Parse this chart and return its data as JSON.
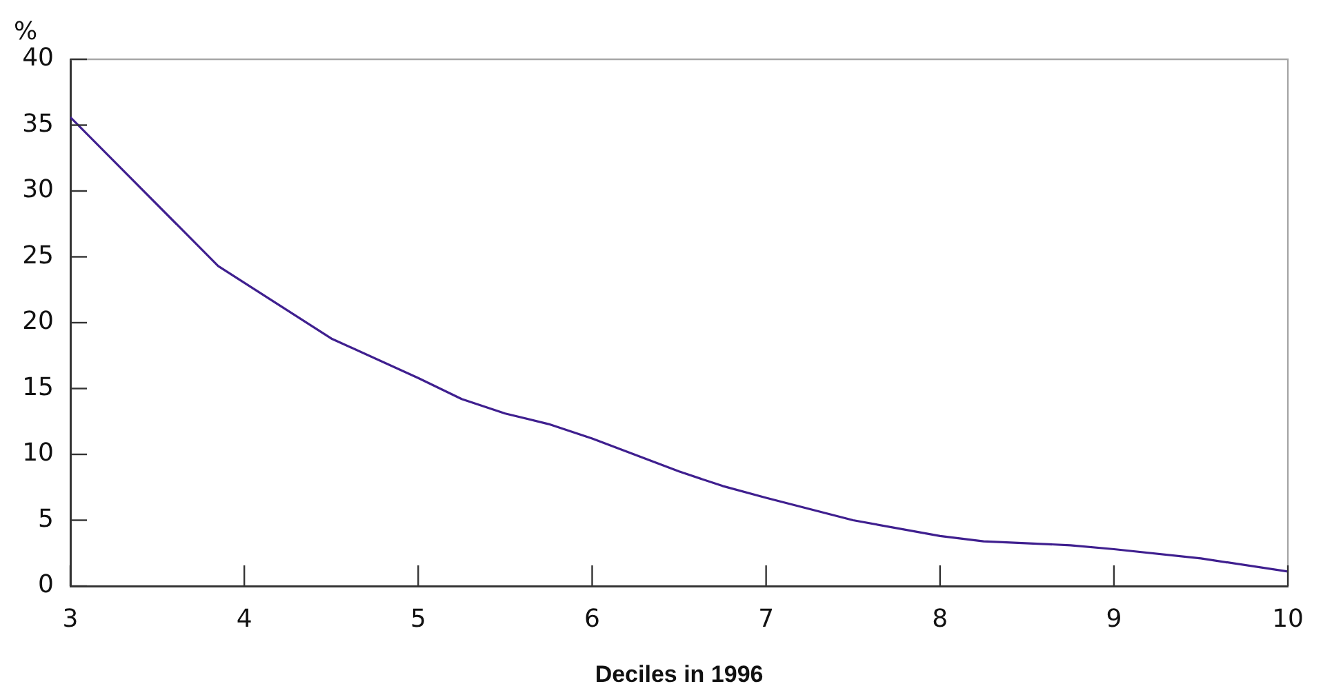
{
  "chart_data": {
    "type": "line",
    "xlabel": "Deciles in 1996",
    "ylabel": "%",
    "x": [
      3,
      3.85,
      4.5,
      5,
      5.25,
      5.5,
      5.75,
      6,
      6.5,
      6.75,
      7,
      7.5,
      8,
      8.25,
      8.75,
      9,
      9.5,
      10
    ],
    "series": [
      {
        "color": "#3f1f8f",
        "values": [
          35.6,
          24.3,
          18.8,
          15.8,
          14.2,
          13.1,
          12.3,
          11.2,
          8.7,
          7.6,
          6.7,
          5.0,
          3.8,
          3.4,
          3.1,
          2.8,
          2.1,
          1.1
        ]
      }
    ],
    "xlim": [
      3,
      10
    ],
    "xticks": [
      3,
      4,
      5,
      6,
      7,
      8,
      9,
      10
    ],
    "ylim": [
      0,
      40
    ],
    "yticks": [
      0,
      5,
      10,
      15,
      20,
      25,
      30,
      35,
      40
    ],
    "grid": false,
    "legend": false,
    "marker": "none",
    "line_style": "solid"
  }
}
